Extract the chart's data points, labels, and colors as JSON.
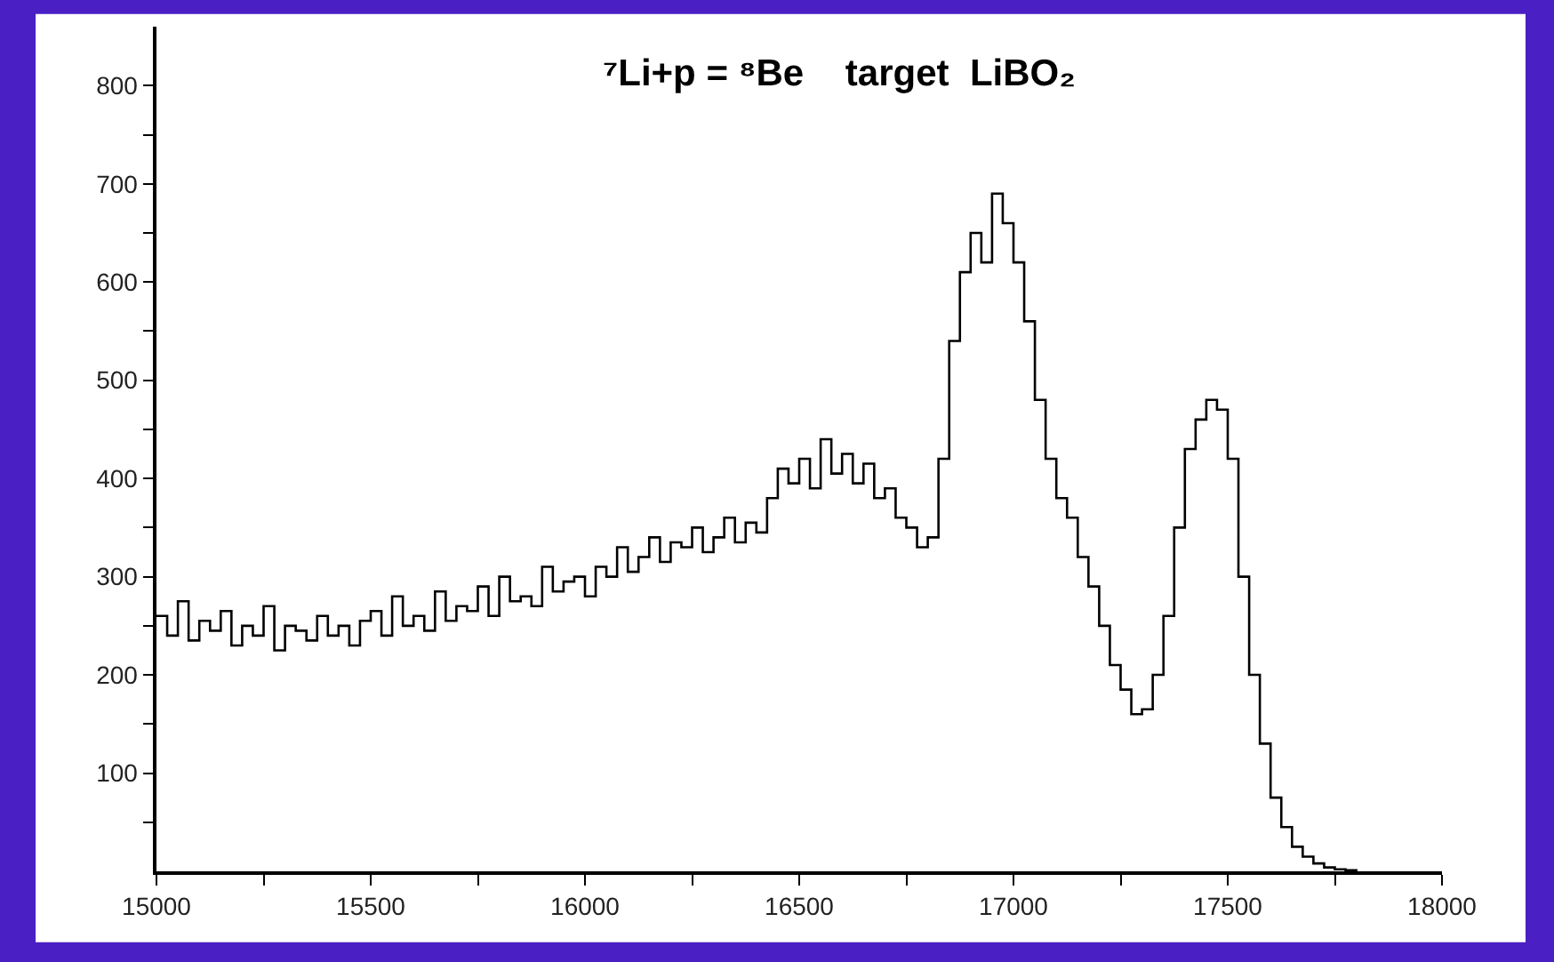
{
  "chart_data": {
    "type": "step",
    "title": "⁷Li+p = ⁸Be    target  LiBO₂",
    "x": [
      15000,
      15025,
      15050,
      15075,
      15100,
      15125,
      15150,
      15175,
      15200,
      15225,
      15250,
      15275,
      15300,
      15325,
      15350,
      15375,
      15400,
      15425,
      15450,
      15475,
      15500,
      15525,
      15550,
      15575,
      15600,
      15625,
      15650,
      15675,
      15700,
      15725,
      15750,
      15775,
      15800,
      15825,
      15850,
      15875,
      15900,
      15925,
      15950,
      15975,
      16000,
      16025,
      16050,
      16075,
      16100,
      16125,
      16150,
      16175,
      16200,
      16225,
      16250,
      16275,
      16300,
      16325,
      16350,
      16375,
      16400,
      16425,
      16450,
      16475,
      16500,
      16525,
      16550,
      16575,
      16600,
      16625,
      16650,
      16675,
      16700,
      16725,
      16750,
      16775,
      16800,
      16825,
      16850,
      16875,
      16900,
      16925,
      16950,
      16975,
      17000,
      17025,
      17050,
      17075,
      17100,
      17125,
      17150,
      17175,
      17200,
      17225,
      17250,
      17275,
      17300,
      17325,
      17350,
      17375,
      17400,
      17425,
      17450,
      17475,
      17500,
      17525,
      17550,
      17575,
      17600,
      17625,
      17650,
      17675,
      17700,
      17725,
      17750,
      17775,
      17800
    ],
    "series": [
      {
        "color": "#000000",
        "values": [
          260,
          240,
          275,
          235,
          255,
          245,
          265,
          230,
          250,
          240,
          270,
          225,
          250,
          245,
          235,
          260,
          240,
          250,
          230,
          255,
          265,
          240,
          280,
          250,
          260,
          245,
          285,
          255,
          270,
          265,
          290,
          260,
          300,
          275,
          280,
          270,
          310,
          285,
          295,
          300,
          280,
          310,
          300,
          330,
          305,
          320,
          340,
          315,
          335,
          330,
          350,
          325,
          340,
          360,
          335,
          355,
          345,
          380,
          410,
          395,
          420,
          390,
          440,
          405,
          425,
          395,
          415,
          380,
          390,
          360,
          350,
          330,
          340,
          420,
          540,
          610,
          650,
          620,
          690,
          660,
          620,
          560,
          480,
          420,
          380,
          360,
          320,
          290,
          250,
          210,
          185,
          160,
          165,
          200,
          260,
          350,
          430,
          460,
          480,
          470,
          420,
          300,
          200,
          130,
          75,
          45,
          25,
          15,
          8,
          4,
          2,
          1,
          0
        ]
      }
    ],
    "xlim": [
      15000,
      18000
    ],
    "xticks": [
      15000,
      {
        "value": 15250,
        "label": null
      },
      15500,
      {
        "value": 15750,
        "label": null
      },
      16000,
      {
        "value": 16250,
        "label": null
      },
      16500,
      {
        "value": 16750,
        "label": null
      },
      17000,
      {
        "value": 17250,
        "label": null
      },
      17500,
      {
        "value": 17750,
        "label": null
      },
      18000
    ],
    "ylim": [
      0,
      860
    ],
    "yticks": [
      {
        "value": 50,
        "label": null
      },
      100,
      {
        "value": 150,
        "label": null
      },
      200,
      {
        "value": 250,
        "label": null
      },
      300,
      {
        "value": 350,
        "label": null
      },
      400,
      {
        "value": 450,
        "label": null
      },
      500,
      {
        "value": 550,
        "label": null
      },
      600,
      {
        "value": 650,
        "label": null
      },
      700,
      {
        "value": 750,
        "label": null
      },
      800
    ],
    "line_style": "solid"
  }
}
